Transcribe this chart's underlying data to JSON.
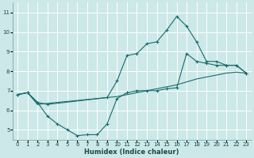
{
  "xlabel": "Humidex (Indice chaleur)",
  "bg_color": "#cce8e8",
  "grid_color": "#ffffff",
  "line_color": "#1a6b6b",
  "xlim": [
    -0.5,
    23.5
  ],
  "ylim": [
    4.5,
    11.5
  ],
  "xticks": [
    0,
    1,
    2,
    3,
    4,
    5,
    6,
    7,
    8,
    9,
    10,
    11,
    12,
    13,
    14,
    15,
    16,
    17,
    18,
    19,
    20,
    21,
    22,
    23
  ],
  "yticks": [
    5,
    6,
    7,
    8,
    9,
    10,
    11
  ],
  "line1_x": [
    0,
    1,
    2,
    3,
    4,
    5,
    6,
    7,
    8,
    9,
    10,
    11,
    12,
    13,
    14,
    15,
    16,
    17,
    18,
    19,
    20,
    21,
    22,
    23
  ],
  "line1_y": [
    6.8,
    6.9,
    6.4,
    5.7,
    5.3,
    5.0,
    4.7,
    4.75,
    4.75,
    5.3,
    6.6,
    6.9,
    7.0,
    7.0,
    7.0,
    7.1,
    7.15,
    8.9,
    8.5,
    8.4,
    8.3,
    8.3,
    8.3,
    7.9
  ],
  "line2_x": [
    0,
    1,
    2,
    3,
    9,
    10,
    11,
    12,
    13,
    14,
    15,
    16,
    17,
    18,
    19,
    20,
    21,
    22,
    23
  ],
  "line2_y": [
    6.8,
    6.9,
    6.4,
    6.3,
    6.65,
    7.5,
    8.8,
    8.9,
    9.4,
    9.5,
    10.1,
    10.8,
    10.3,
    9.5,
    8.5,
    8.5,
    8.3,
    8.3,
    7.9
  ],
  "line3_x": [
    0,
    1,
    2,
    3,
    4,
    5,
    6,
    7,
    8,
    9,
    10,
    11,
    12,
    13,
    14,
    15,
    16,
    17,
    18,
    19,
    20,
    21,
    22,
    23
  ],
  "line3_y": [
    6.8,
    6.9,
    6.3,
    6.35,
    6.4,
    6.45,
    6.5,
    6.55,
    6.6,
    6.65,
    6.7,
    6.8,
    6.9,
    7.0,
    7.1,
    7.2,
    7.3,
    7.45,
    7.6,
    7.7,
    7.8,
    7.9,
    7.95,
    7.9
  ]
}
